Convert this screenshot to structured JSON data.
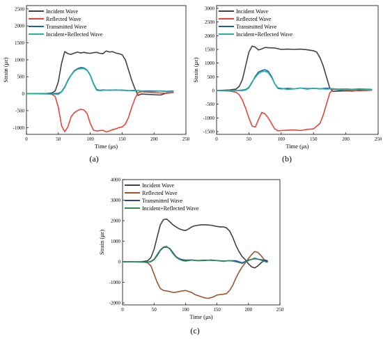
{
  "chart_data": [
    {
      "panel_label": "(a)",
      "type": "line",
      "xlabel": "Time (μs)",
      "ylabel": "Strain (με)",
      "xlim": [
        0,
        250
      ],
      "ylim": [
        -1200,
        2600
      ],
      "xticks": [
        0,
        50,
        100,
        150,
        200,
        250
      ],
      "yticks": [
        -1000,
        -500,
        0,
        500,
        1000,
        1500,
        2000,
        2500
      ],
      "legend_position": "top-left",
      "series": [
        {
          "name": "Incident Wave",
          "color": "#404040",
          "x": [
            0,
            30,
            40,
            45,
            50,
            55,
            60,
            65,
            70,
            75,
            80,
            85,
            90,
            95,
            100,
            105,
            110,
            115,
            120,
            125,
            130,
            135,
            140,
            145,
            150,
            155,
            160,
            165,
            170,
            175,
            180,
            190,
            200,
            210,
            220,
            230
          ],
          "y": [
            0,
            0,
            20,
            80,
            350,
            900,
            1240,
            1180,
            1160,
            1200,
            1230,
            1200,
            1220,
            1200,
            1190,
            1210,
            1220,
            1190,
            1180,
            1260,
            1230,
            1240,
            1200,
            1180,
            1150,
            1000,
            700,
            400,
            150,
            -50,
            -10,
            -20,
            -30,
            -40,
            20,
            30
          ]
        },
        {
          "name": "Reflected Wave",
          "color": "#e8433a",
          "x": [
            0,
            30,
            40,
            45,
            50,
            55,
            60,
            65,
            70,
            75,
            80,
            85,
            90,
            95,
            100,
            105,
            110,
            115,
            120,
            125,
            130,
            135,
            140,
            145,
            150,
            155,
            160,
            165,
            170,
            175,
            180,
            190,
            200,
            210,
            220,
            230
          ],
          "y": [
            0,
            0,
            -20,
            -80,
            -400,
            -950,
            -1120,
            -980,
            -680,
            -560,
            -500,
            -460,
            -480,
            -580,
            -880,
            -1080,
            -1100,
            -1090,
            -1080,
            -1130,
            -1100,
            -1060,
            -1040,
            -1000,
            -980,
            -900,
            -700,
            -400,
            -150,
            30,
            60,
            40,
            30,
            20,
            10,
            30
          ]
        },
        {
          "name": "Transmitted Wave",
          "color": "#1f5fa8",
          "x": [
            0,
            40,
            50,
            55,
            60,
            65,
            70,
            75,
            80,
            85,
            90,
            95,
            100,
            105,
            110,
            115,
            120,
            130,
            140,
            150,
            160,
            170,
            180,
            190,
            200,
            210,
            220,
            230
          ],
          "y": [
            0,
            0,
            10,
            60,
            200,
            400,
            550,
            680,
            740,
            770,
            760,
            700,
            550,
            300,
            120,
            100,
            110,
            100,
            110,
            100,
            90,
            90,
            80,
            80,
            80,
            80,
            70,
            80
          ]
        },
        {
          "name": "Incident+Reflected Wave",
          "color": "#22b0a0",
          "x": [
            0,
            40,
            50,
            55,
            60,
            65,
            70,
            75,
            80,
            85,
            90,
            95,
            100,
            105,
            110,
            115,
            120,
            130,
            140,
            150,
            160,
            170,
            180,
            190,
            200,
            210,
            220,
            230
          ],
          "y": [
            0,
            -10,
            -20,
            50,
            180,
            380,
            540,
            660,
            720,
            740,
            740,
            690,
            540,
            280,
            100,
            90,
            100,
            110,
            100,
            110,
            90,
            100,
            80,
            60,
            70,
            80,
            60,
            70
          ]
        }
      ]
    },
    {
      "panel_label": "(b)",
      "type": "line",
      "xlabel": "Time (μs)",
      "ylabel": "Strain (με)",
      "xlim": [
        0,
        250
      ],
      "ylim": [
        -1600,
        3100
      ],
      "xticks": [
        0,
        50,
        100,
        150,
        200,
        250
      ],
      "yticks": [
        -1500,
        -1000,
        -500,
        0,
        500,
        1000,
        1500,
        2000,
        2500,
        3000
      ],
      "legend_position": "top-left",
      "series": [
        {
          "name": "Incident Wave",
          "color": "#404040",
          "x": [
            0,
            20,
            30,
            35,
            40,
            45,
            50,
            55,
            60,
            65,
            70,
            75,
            80,
            90,
            100,
            110,
            120,
            130,
            140,
            150,
            155,
            160,
            165,
            170,
            175,
            180,
            190,
            200,
            210,
            220,
            230,
            240
          ],
          "y": [
            0,
            20,
            50,
            150,
            400,
            900,
            1400,
            1620,
            1580,
            1480,
            1520,
            1570,
            1560,
            1550,
            1500,
            1510,
            1500,
            1510,
            1490,
            1450,
            1400,
            1200,
            900,
            500,
            100,
            -30,
            -20,
            -10,
            -20,
            10,
            0,
            10
          ]
        },
        {
          "name": "Reflected Wave",
          "color": "#e8433a",
          "x": [
            0,
            20,
            30,
            35,
            40,
            45,
            50,
            55,
            60,
            65,
            70,
            75,
            80,
            85,
            90,
            95,
            100,
            110,
            120,
            130,
            140,
            150,
            160,
            165,
            170,
            175,
            180,
            190,
            200,
            210,
            220,
            230,
            240
          ],
          "y": [
            0,
            -20,
            -60,
            -150,
            -350,
            -650,
            -1000,
            -1300,
            -1330,
            -1050,
            -800,
            -850,
            -1000,
            -1200,
            -1400,
            -1470,
            -1460,
            -1450,
            -1440,
            -1460,
            -1420,
            -1400,
            -1200,
            -900,
            -500,
            -100,
            50,
            20,
            10,
            0,
            -10,
            0,
            10
          ]
        },
        {
          "name": "Transmitted Wave",
          "color": "#1f5fa8",
          "x": [
            0,
            30,
            40,
            45,
            50,
            55,
            60,
            65,
            70,
            75,
            80,
            85,
            90,
            95,
            100,
            110,
            120,
            130,
            140,
            150,
            160,
            170,
            180,
            190,
            200,
            210,
            220,
            230,
            240
          ],
          "y": [
            0,
            0,
            0,
            20,
            100,
            300,
            520,
            680,
            730,
            760,
            700,
            520,
            250,
            80,
            60,
            80,
            60,
            90,
            70,
            80,
            60,
            90,
            60,
            50,
            60,
            40,
            60,
            50,
            40
          ]
        },
        {
          "name": "Incident+Reflected Wave",
          "color": "#22b0a0",
          "x": [
            0,
            30,
            40,
            45,
            50,
            55,
            60,
            65,
            70,
            75,
            80,
            85,
            90,
            95,
            100,
            110,
            120,
            130,
            140,
            150,
            160,
            170,
            180,
            190,
            200,
            210,
            220,
            230,
            240
          ],
          "y": [
            0,
            0,
            20,
            40,
            120,
            320,
            480,
            620,
            690,
            700,
            650,
            480,
            250,
            100,
            80,
            40,
            60,
            90,
            50,
            80,
            70,
            50,
            70,
            40,
            60,
            30,
            50,
            40,
            30
          ]
        }
      ]
    },
    {
      "panel_label": "(c)",
      "type": "line",
      "xlabel": "Time (μs)",
      "ylabel": "Strain (με)",
      "xlim": [
        0,
        250
      ],
      "ylim": [
        -2100,
        4000
      ],
      "xticks": [
        0,
        50,
        100,
        150,
        200,
        250
      ],
      "yticks": [
        -2000,
        -1000,
        0,
        1000,
        2000,
        3000,
        4000
      ],
      "legend_position": "top-left",
      "series": [
        {
          "name": "Incident Wave",
          "color": "#404040",
          "x": [
            0,
            30,
            40,
            45,
            50,
            55,
            60,
            65,
            70,
            75,
            80,
            85,
            90,
            95,
            100,
            105,
            110,
            115,
            120,
            125,
            130,
            135,
            140,
            145,
            150,
            155,
            160,
            165,
            170,
            175,
            180,
            185,
            190,
            195,
            200,
            205,
            210,
            215,
            220,
            225,
            230
          ],
          "y": [
            0,
            0,
            50,
            200,
            600,
            1200,
            1800,
            2050,
            2080,
            1950,
            1800,
            1700,
            1600,
            1550,
            1520,
            1600,
            1700,
            1750,
            1780,
            1800,
            1800,
            1790,
            1780,
            1750,
            1720,
            1700,
            1700,
            1650,
            1500,
            1200,
            800,
            500,
            250,
            100,
            -100,
            -250,
            -300,
            -200,
            -50,
            50,
            20
          ]
        },
        {
          "name": "Reflected Wave",
          "color": "#a0522d",
          "x": [
            0,
            30,
            40,
            45,
            50,
            55,
            60,
            65,
            70,
            75,
            80,
            85,
            90,
            95,
            100,
            105,
            110,
            115,
            120,
            125,
            130,
            135,
            140,
            145,
            150,
            155,
            160,
            165,
            170,
            175,
            180,
            185,
            190,
            195,
            200,
            205,
            210,
            215,
            220,
            225,
            230
          ],
          "y": [
            0,
            0,
            -50,
            -200,
            -600,
            -1000,
            -1300,
            -1400,
            -1420,
            -1450,
            -1500,
            -1480,
            -1450,
            -1420,
            -1400,
            -1450,
            -1500,
            -1600,
            -1650,
            -1700,
            -1750,
            -1780,
            -1750,
            -1700,
            -1620,
            -1600,
            -1580,
            -1550,
            -1400,
            -1150,
            -800,
            -500,
            -250,
            -50,
            150,
            350,
            500,
            450,
            300,
            100,
            50
          ]
        },
        {
          "name": "Transmitted Wave",
          "color": "#2c3fb0",
          "x": [
            0,
            40,
            45,
            50,
            55,
            60,
            65,
            70,
            75,
            80,
            85,
            90,
            95,
            100,
            110,
            120,
            130,
            140,
            150,
            160,
            170,
            180,
            190,
            200,
            210,
            220,
            230
          ],
          "y": [
            0,
            -20,
            0,
            100,
            300,
            550,
            700,
            720,
            650,
            450,
            250,
            150,
            100,
            80,
            90,
            60,
            80,
            70,
            60,
            40,
            50,
            50,
            -50,
            80,
            150,
            100,
            50
          ]
        },
        {
          "name": "Incident+Reflected Wave",
          "color": "#2e8b57",
          "x": [
            0,
            40,
            45,
            50,
            55,
            60,
            65,
            70,
            75,
            80,
            85,
            90,
            95,
            100,
            110,
            120,
            130,
            140,
            150,
            160,
            170,
            180,
            190,
            200,
            210,
            220,
            230
          ],
          "y": [
            0,
            -20,
            20,
            120,
            350,
            580,
            720,
            750,
            620,
            400,
            220,
            120,
            60,
            30,
            80,
            50,
            60,
            90,
            60,
            20,
            60,
            0,
            -80,
            60,
            180,
            80,
            -30
          ]
        }
      ]
    }
  ]
}
